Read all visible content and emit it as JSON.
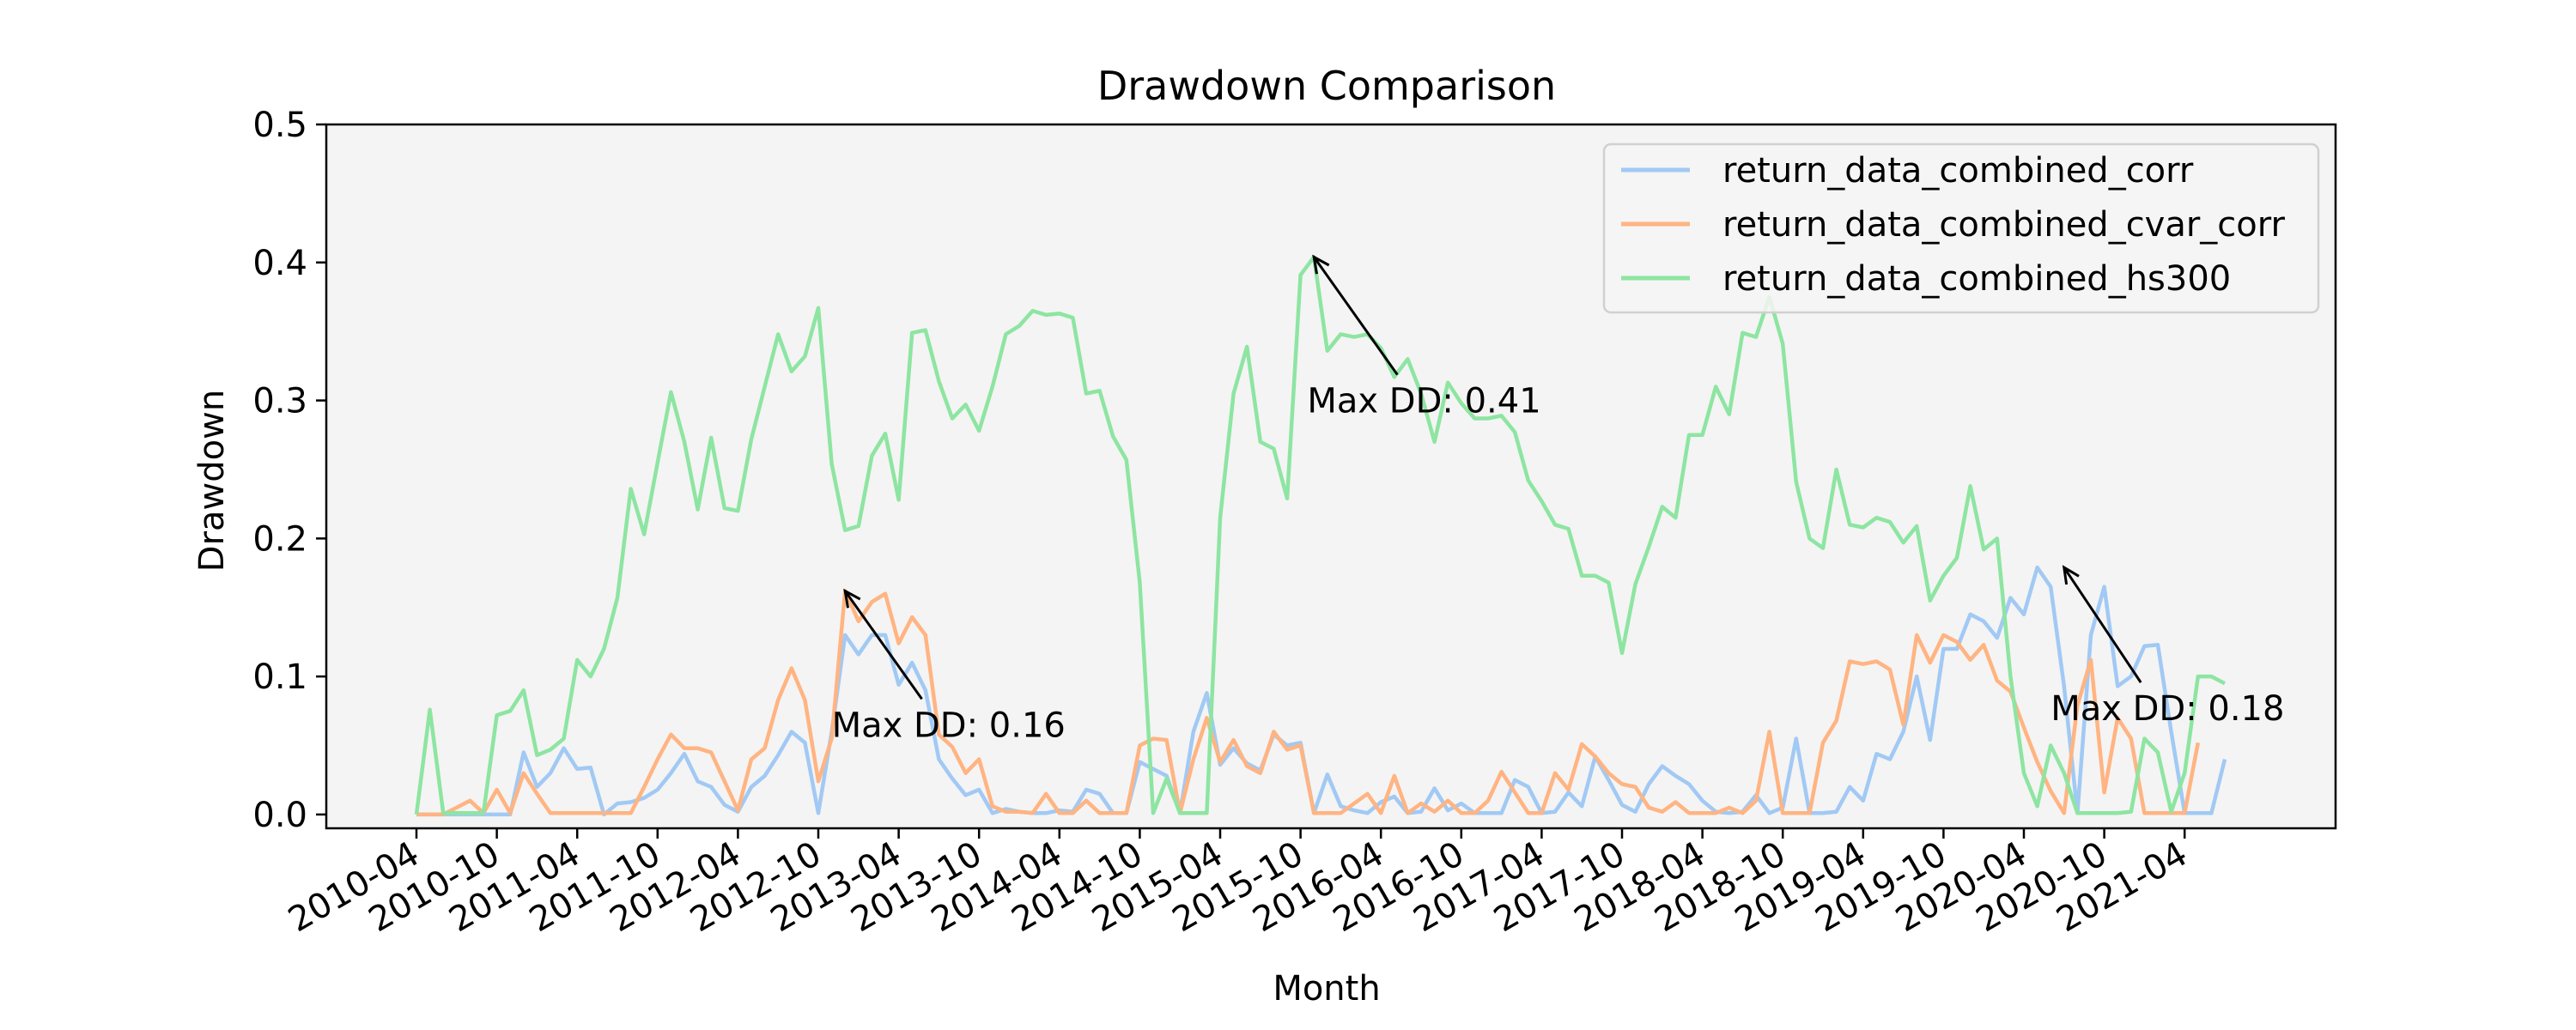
{
  "chart_data": {
    "type": "line",
    "title": "Drawdown Comparison",
    "xlabel": "Month",
    "ylabel": "Drawdown",
    "ylim": [
      -0.01,
      0.5
    ],
    "yticks": [
      "0.0",
      "0.1",
      "0.2",
      "0.3",
      "0.4",
      "0.5"
    ],
    "x_start": "2010-04",
    "x_tick_labels": [
      "2010-04",
      "2010-10",
      "2011-04",
      "2011-10",
      "2012-04",
      "2012-10",
      "2013-04",
      "2013-10",
      "2014-04",
      "2014-10",
      "2015-04",
      "2015-10",
      "2016-04",
      "2016-10",
      "2017-04",
      "2017-10",
      "2018-04",
      "2018-10",
      "2019-04",
      "2019-10",
      "2020-04",
      "2020-10",
      "2021-04"
    ],
    "legend_position": "top-right",
    "grid": false,
    "background": "#f4f4f4",
    "series": [
      {
        "name": "return_data_combined_corr",
        "color": "#a1c9f4",
        "values": [
          0,
          0,
          0,
          0,
          0,
          0,
          0,
          0,
          0.045,
          0.02,
          0.03,
          0.048,
          0.033,
          0.034,
          0,
          0.008,
          0.009,
          0.012,
          0.018,
          0.03,
          0.044,
          0.024,
          0.02,
          0.007,
          0.002,
          0.02,
          0.028,
          0.043,
          0.06,
          0.052,
          0.001,
          0.06,
          0.13,
          0.116,
          0.13,
          0.13,
          0.094,
          0.11,
          0.09,
          0.04,
          0.026,
          0.014,
          0.018,
          0.001,
          0.004,
          0.002,
          0.001,
          0.001,
          0.003,
          0.002,
          0.018,
          0.015,
          0.001,
          0.001,
          0.038,
          0.033,
          0.028,
          0.001,
          0.06,
          0.088,
          0.036,
          0.048,
          0.037,
          0.032,
          0.058,
          0.05,
          0.052,
          0.001,
          0.029,
          0.006,
          0.003,
          0.001,
          0.009,
          0.013,
          0.001,
          0.002,
          0.019,
          0.003,
          0.008,
          0.001,
          0.001,
          0.001,
          0.025,
          0.02,
          0.001,
          0.002,
          0.016,
          0.006,
          0.042,
          0.025,
          0.007,
          0.002,
          0.022,
          0.035,
          0.028,
          0.022,
          0.01,
          0.002,
          0.001,
          0.002,
          0.014,
          0.001,
          0.005,
          0.055,
          0.001,
          0.001,
          0.002,
          0.02,
          0.01,
          0.044,
          0.04,
          0.06,
          0.1,
          0.054,
          0.12,
          0.12,
          0.145,
          0.14,
          0.128,
          0.157,
          0.145,
          0.179,
          0.165,
          0.093,
          0.001,
          0.13,
          0.165,
          0.093,
          0.1,
          0.122,
          0.123,
          0.06,
          0.001,
          0.001,
          0.001,
          0.04
        ]
      },
      {
        "name": "return_data_combined_cvar_corr",
        "color": "#ffb482",
        "values": [
          0,
          0,
          0,
          0.005,
          0.01,
          0.001,
          0.018,
          0.001,
          0.03,
          0.015,
          0.001,
          0.001,
          0.001,
          0.001,
          0.001,
          0.001,
          0.001,
          0.02,
          0.04,
          0.058,
          0.048,
          0.048,
          0.045,
          0.024,
          0.003,
          0.04,
          0.048,
          0.083,
          0.106,
          0.083,
          0.024,
          0.055,
          0.162,
          0.14,
          0.154,
          0.16,
          0.124,
          0.143,
          0.13,
          0.058,
          0.049,
          0.03,
          0.04,
          0.006,
          0.002,
          0.002,
          0.001,
          0.015,
          0.001,
          0.001,
          0.01,
          0.001,
          0.001,
          0.001,
          0.05,
          0.055,
          0.054,
          0.001,
          0.04,
          0.07,
          0.038,
          0.054,
          0.035,
          0.03,
          0.06,
          0.047,
          0.05,
          0.001,
          0.001,
          0.001,
          0.008,
          0.015,
          0.001,
          0.028,
          0.001,
          0.008,
          0.002,
          0.01,
          0.001,
          0.001,
          0.01,
          0.031,
          0.016,
          0.001,
          0.001,
          0.03,
          0.018,
          0.051,
          0.042,
          0.03,
          0.022,
          0.02,
          0.005,
          0.002,
          0.009,
          0.001,
          0.001,
          0.001,
          0.005,
          0.001,
          0.01,
          0.06,
          0.001,
          0.001,
          0.001,
          0.052,
          0.068,
          0.111,
          0.109,
          0.111,
          0.105,
          0.065,
          0.13,
          0.11,
          0.13,
          0.125,
          0.112,
          0.123,
          0.097,
          0.089,
          0.063,
          0.038,
          0.017,
          0.001,
          0.079,
          0.112,
          0.016,
          0.07,
          0.055,
          0.001,
          0.001,
          0.001,
          0.001,
          0.052
        ]
      },
      {
        "name": "return_data_combined_hs300",
        "color": "#8de5a1",
        "values": [
          0,
          0.076,
          0.001,
          0.001,
          0.001,
          0.001,
          0.072,
          0.075,
          0.09,
          0.043,
          0.047,
          0.055,
          0.112,
          0.1,
          0.12,
          0.157,
          0.236,
          0.203,
          0.255,
          0.306,
          0.27,
          0.221,
          0.273,
          0.222,
          0.22,
          0.272,
          0.31,
          0.348,
          0.321,
          0.332,
          0.367,
          0.254,
          0.206,
          0.209,
          0.26,
          0.276,
          0.228,
          0.349,
          0.351,
          0.314,
          0.287,
          0.297,
          0.278,
          0.31,
          0.348,
          0.354,
          0.365,
          0.362,
          0.363,
          0.36,
          0.305,
          0.307,
          0.274,
          0.257,
          0.168,
          0.001,
          0.026,
          0.001,
          0.001,
          0.001,
          0.215,
          0.305,
          0.339,
          0.27,
          0.265,
          0.229,
          0.391,
          0.404,
          0.336,
          0.348,
          0.346,
          0.348,
          0.338,
          0.317,
          0.33,
          0.305,
          0.27,
          0.313,
          0.298,
          0.287,
          0.287,
          0.289,
          0.277,
          0.242,
          0.227,
          0.21,
          0.207,
          0.173,
          0.173,
          0.168,
          0.117,
          0.167,
          0.194,
          0.223,
          0.215,
          0.275,
          0.275,
          0.31,
          0.29,
          0.349,
          0.346,
          0.375,
          0.341,
          0.241,
          0.2,
          0.193,
          0.25,
          0.21,
          0.208,
          0.215,
          0.212,
          0.197,
          0.209,
          0.155,
          0.173,
          0.186,
          0.238,
          0.192,
          0.2,
          0.1,
          0.03,
          0.006,
          0.05,
          0.03,
          0.001,
          0.001,
          0.001,
          0.001,
          0.002,
          0.055,
          0.045,
          0.002,
          0.03,
          0.1,
          0.1,
          0.095
        ]
      }
    ],
    "annotations": [
      {
        "text": "Max DD: 0.16",
        "x_index": 32,
        "y": 0.162,
        "text_x_index": 31,
        "text_y": 0.065
      },
      {
        "text": "Max DD: 0.41",
        "x_index": 67,
        "y": 0.404,
        "text_x_index": 66.5,
        "text_y": 0.3
      },
      {
        "text": "Max DD: 0.18",
        "x_index": 123,
        "y": 0.179,
        "text_x_index": 122,
        "text_y": 0.077
      }
    ]
  }
}
